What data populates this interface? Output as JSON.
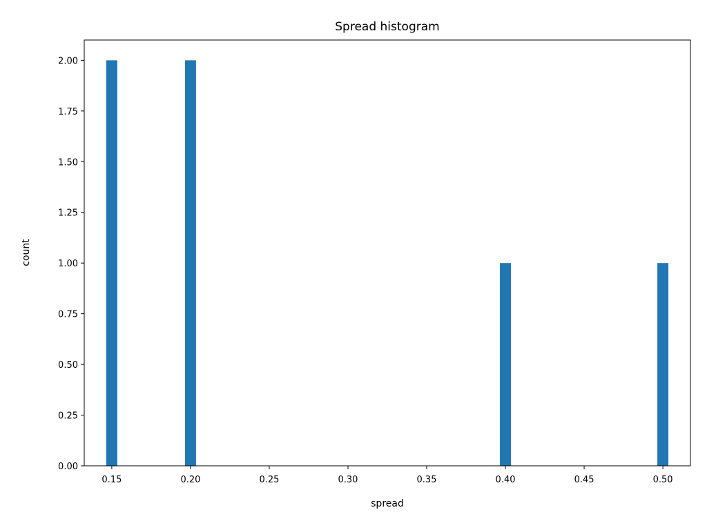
{
  "chart_data": {
    "type": "bar",
    "title": "Spread histogram",
    "xlabel": "spread",
    "ylabel": "count",
    "xlim": [
      0.1325,
      0.5175
    ],
    "ylim": [
      0,
      2.1
    ],
    "bin_width": 0.007,
    "x_ticks": [
      "0.15",
      "0.20",
      "0.25",
      "0.30",
      "0.35",
      "0.40",
      "0.45",
      "0.50"
    ],
    "y_ticks": [
      "0.00",
      "0.25",
      "0.50",
      "0.75",
      "1.00",
      "1.25",
      "1.50",
      "1.75",
      "2.00"
    ],
    "bins": [
      {
        "x": 0.15,
        "count": 2
      },
      {
        "x": 0.2,
        "count": 2
      },
      {
        "x": 0.4,
        "count": 1
      },
      {
        "x": 0.5,
        "count": 1
      }
    ],
    "grid": false,
    "bar_color": "#1f77b4"
  }
}
